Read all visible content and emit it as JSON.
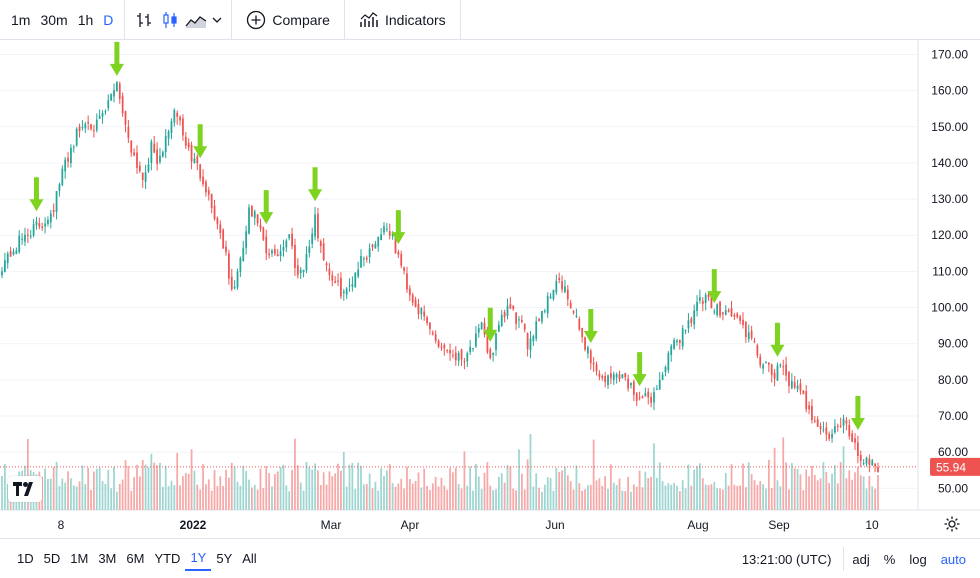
{
  "toolbar": {
    "intervals": [
      {
        "label": "1m",
        "active": false
      },
      {
        "label": "30m",
        "active": false
      },
      {
        "label": "1h",
        "active": false
      },
      {
        "label": "D",
        "active": true
      }
    ],
    "compare_label": "Compare",
    "indicators_label": "Indicators",
    "icons": [
      "bar-chart-icon",
      "candlestick-icon",
      "area-chart-icon",
      "chevron-down-icon",
      "plus-circle-icon",
      "indicators-icon"
    ]
  },
  "bottom": {
    "ranges": [
      {
        "label": "1D",
        "active": false
      },
      {
        "label": "5D",
        "active": false
      },
      {
        "label": "1M",
        "active": false
      },
      {
        "label": "3M",
        "active": false
      },
      {
        "label": "6M",
        "active": false
      },
      {
        "label": "YTD",
        "active": false
      },
      {
        "label": "1Y",
        "active": true
      },
      {
        "label": "5Y",
        "active": false
      },
      {
        "label": "All",
        "active": false
      }
    ],
    "time": "13:21:00 (UTC)",
    "options": [
      "adj",
      "%",
      "log",
      "auto"
    ]
  },
  "colors": {
    "up": "#26a69a",
    "down": "#ef5350",
    "up_volume": "#9fd6d1",
    "down_volume": "#f6a9a8",
    "arrow": "#7ed321",
    "price_badge": "#ef5350",
    "grid": "#f0f3fa",
    "accent": "#2962ff"
  },
  "chart_data": {
    "type": "candlestick",
    "y_axis": {
      "ticks": [
        "50.00",
        "60.00",
        "70.00",
        "80.00",
        "90.00",
        "100.00",
        "110.00",
        "120.00",
        "130.00",
        "140.00",
        "150.00",
        "160.00",
        "170.00"
      ],
      "range": [
        44,
        174
      ]
    },
    "x_axis": {
      "labels": [
        "8",
        "2022",
        "Mar",
        "Apr",
        "Jun",
        "Aug",
        "Sep",
        "10"
      ]
    },
    "last_price": "55.94",
    "grid": true,
    "volume_pane": true,
    "anchor_points": [
      [
        0,
        112
      ],
      [
        5,
        117
      ],
      [
        9,
        121
      ],
      [
        14,
        123
      ],
      [
        18,
        128
      ],
      [
        22,
        140
      ],
      [
        26,
        148
      ],
      [
        30,
        152
      ],
      [
        33,
        150
      ],
      [
        36,
        154
      ],
      [
        40,
        163
      ],
      [
        43,
        150
      ],
      [
        46,
        142
      ],
      [
        49,
        136
      ],
      [
        52,
        144
      ],
      [
        55,
        140
      ],
      [
        58,
        150
      ],
      [
        61,
        154
      ],
      [
        64,
        145
      ],
      [
        67,
        140
      ],
      [
        70,
        136
      ],
      [
        73,
        128
      ],
      [
        77,
        118
      ],
      [
        80,
        104
      ],
      [
        83,
        112
      ],
      [
        86,
        126
      ],
      [
        89,
        124
      ],
      [
        92,
        114
      ],
      [
        96,
        115
      ],
      [
        100,
        120
      ],
      [
        103,
        109
      ],
      [
        106,
        114
      ],
      [
        109,
        124
      ],
      [
        112,
        114
      ],
      [
        116,
        106
      ],
      [
        120,
        104
      ],
      [
        124,
        112
      ],
      [
        128,
        116
      ],
      [
        131,
        120
      ],
      [
        134,
        123
      ],
      [
        138,
        114
      ],
      [
        142,
        104
      ],
      [
        146,
        98
      ],
      [
        149,
        94
      ],
      [
        152,
        90
      ],
      [
        156,
        88
      ],
      [
        160,
        86
      ],
      [
        164,
        90
      ],
      [
        167,
        94
      ],
      [
        170,
        86
      ],
      [
        173,
        94
      ],
      [
        176,
        100
      ],
      [
        180,
        96
      ],
      [
        183,
        90
      ],
      [
        186,
        96
      ],
      [
        190,
        102
      ],
      [
        193,
        108
      ],
      [
        196,
        104
      ],
      [
        199,
        98
      ],
      [
        203,
        90
      ],
      [
        207,
        82
      ],
      [
        211,
        80
      ],
      [
        215,
        82
      ],
      [
        219,
        78
      ],
      [
        223,
        74
      ],
      [
        227,
        76
      ],
      [
        230,
        82
      ],
      [
        233,
        88
      ],
      [
        236,
        92
      ],
      [
        239,
        96
      ],
      [
        242,
        101
      ],
      [
        245,
        102
      ],
      [
        248,
        99
      ],
      [
        251,
        100
      ],
      [
        254,
        98
      ],
      [
        257,
        96
      ],
      [
        260,
        92
      ],
      [
        263,
        87
      ],
      [
        266,
        83
      ],
      [
        269,
        81
      ],
      [
        272,
        84
      ],
      [
        275,
        78
      ],
      [
        278,
        76
      ],
      [
        281,
        72
      ],
      [
        284,
        68
      ],
      [
        287,
        64
      ],
      [
        290,
        66
      ],
      [
        293,
        68
      ],
      [
        296,
        64
      ],
      [
        299,
        58
      ],
      [
        302,
        58
      ],
      [
        305,
        56
      ]
    ],
    "markers_at_index": [
      12,
      40,
      69,
      92,
      109,
      138,
      170,
      205,
      222,
      248,
      270,
      298
    ]
  }
}
